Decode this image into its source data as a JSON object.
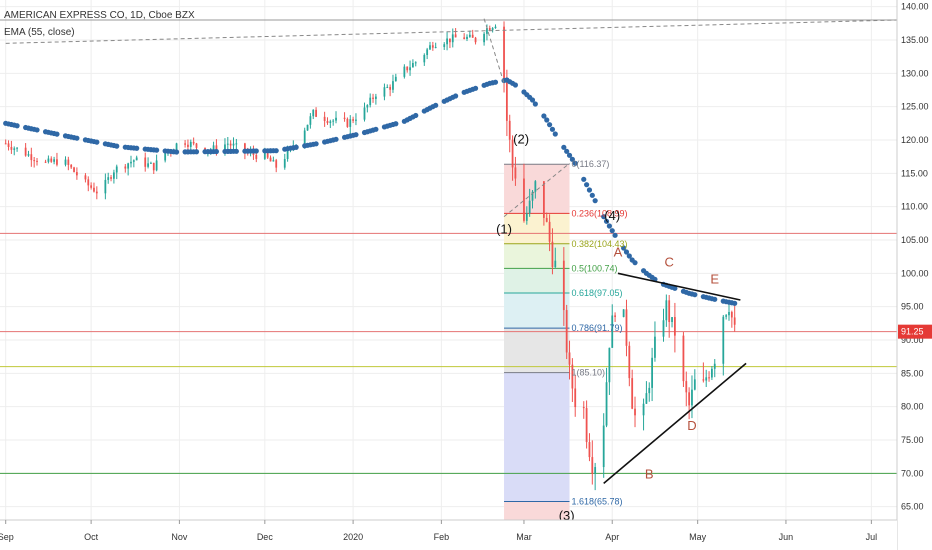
{
  "chart_data": {
    "type": "candlestick",
    "title": "AMERICAN EXPRESS CO, 1D, Cboe BZX",
    "indicator": "EMA (55, close)",
    "last_price": {
      "value": "91.25",
      "price": 91.25,
      "color": "#e53935"
    },
    "ylim": [
      63,
      141
    ],
    "y_ticks": [
      "140.00",
      "135.00",
      "130.00",
      "125.00",
      "120.00",
      "115.00",
      "110.00",
      "105.00",
      "100.00",
      "95.00",
      "90.00",
      "85.00",
      "80.00",
      "75.00",
      "70.00",
      "65.00"
    ],
    "x_ticks": [
      {
        "label": "Sep",
        "day": 0
      },
      {
        "label": "Oct",
        "day": 30
      },
      {
        "label": "Nov",
        "day": 61
      },
      {
        "label": "Dec",
        "day": 91
      },
      {
        "label": "2020",
        "day": 122
      },
      {
        "label": "Feb",
        "day": 153
      },
      {
        "label": "Mar",
        "day": 182
      },
      {
        "label": "Apr",
        "day": 213
      },
      {
        "label": "May",
        "day": 243
      },
      {
        "label": "Jun",
        "day": 274
      },
      {
        "label": "Jul",
        "day": 304
      }
    ],
    "xlim": [
      -2,
      313
    ],
    "colors": {
      "up": "#26a69a",
      "down": "#ef5350",
      "ema": "#2f68a6",
      "grid": "#eeeeee"
    },
    "price_path": [
      [
        0,
        119.5
      ],
      [
        7,
        118.0
      ],
      [
        14,
        116.5
      ],
      [
        20,
        117.0
      ],
      [
        28,
        113.5
      ],
      [
        33,
        112.0
      ],
      [
        38,
        115.5
      ],
      [
        45,
        117.0
      ],
      [
        52,
        116.0
      ],
      [
        56,
        118.0
      ],
      [
        62,
        120.0
      ],
      [
        67,
        119.0
      ],
      [
        72,
        118.5
      ],
      [
        78,
        119.5
      ],
      [
        85,
        118.0
      ],
      [
        91,
        117.5
      ],
      [
        95,
        116.0
      ],
      [
        100,
        118.5
      ],
      [
        104,
        121.0
      ],
      [
        108,
        124.0
      ],
      [
        114,
        123.0
      ],
      [
        120,
        122.5
      ],
      [
        126,
        124.5
      ],
      [
        130,
        127.0
      ],
      [
        135,
        128.0
      ],
      [
        140,
        130.5
      ],
      [
        145,
        132.0
      ],
      [
        150,
        134.5
      ],
      [
        155,
        135.0
      ],
      [
        160,
        135.5
      ],
      [
        165,
        135.0
      ],
      [
        168,
        136.5
      ],
      [
        172,
        137.5
      ],
      [
        174,
        136.0
      ],
      [
        176,
        123.0
      ],
      [
        178,
        116.0
      ],
      [
        180,
        114.0
      ],
      [
        182,
        108.0
      ],
      [
        184,
        110.0
      ],
      [
        186,
        113.0
      ],
      [
        188,
        111.0
      ],
      [
        190,
        107.0
      ],
      [
        192,
        102.5
      ],
      [
        194,
        100.0
      ],
      [
        196,
        93.0
      ],
      [
        198,
        85.0
      ],
      [
        200,
        81.0
      ],
      [
        202,
        83.0
      ],
      [
        204,
        76.0
      ],
      [
        206,
        71.5
      ],
      [
        208,
        72.0
      ],
      [
        210,
        78.0
      ],
      [
        212,
        90.0
      ],
      [
        214,
        95.0
      ],
      [
        216,
        96.0
      ],
      [
        218,
        90.0
      ],
      [
        220,
        81.0
      ],
      [
        222,
        76.0
      ],
      [
        224,
        79.0
      ],
      [
        226,
        84.0
      ],
      [
        228,
        89.0
      ],
      [
        230,
        93.0
      ],
      [
        232,
        95.0
      ],
      [
        234,
        92.0
      ],
      [
        236,
        90.5
      ],
      [
        238,
        83.0
      ],
      [
        240,
        80.0
      ],
      [
        242,
        83.5
      ],
      [
        244,
        81.5
      ],
      [
        246,
        84.5
      ],
      [
        248,
        86.5
      ],
      [
        250,
        88.5
      ],
      [
        252,
        94.0
      ],
      [
        254,
        95.5
      ],
      [
        256,
        91.2
      ]
    ],
    "ema_path": [
      [
        0,
        122.5
      ],
      [
        20,
        120.7
      ],
      [
        40,
        119.0
      ],
      [
        60,
        118.2
      ],
      [
        80,
        118.3
      ],
      [
        95,
        118.4
      ],
      [
        110,
        119.5
      ],
      [
        125,
        121.0
      ],
      [
        140,
        122.8
      ],
      [
        150,
        125.0
      ],
      [
        160,
        127.0
      ],
      [
        170,
        128.5
      ],
      [
        176,
        129.0
      ],
      [
        180,
        128.0
      ],
      [
        185,
        126.0
      ],
      [
        190,
        123.0
      ],
      [
        195,
        119.5
      ],
      [
        200,
        116.5
      ],
      [
        205,
        112.5
      ],
      [
        210,
        108.5
      ],
      [
        215,
        105.0
      ],
      [
        220,
        102.0
      ],
      [
        225,
        100.0
      ],
      [
        230,
        98.5
      ],
      [
        240,
        97.0
      ],
      [
        250,
        96.0
      ],
      [
        256,
        95.5
      ]
    ],
    "wave_labels": [
      {
        "text": "(1)",
        "day": 175,
        "price": 106.0,
        "color": "black"
      },
      {
        "text": "(2)",
        "day": 181,
        "price": 119.5,
        "color": "black"
      },
      {
        "text": "(3)",
        "day": 197,
        "price": 63.0,
        "color": "black"
      },
      {
        "text": "(4)",
        "day": 213,
        "price": 108.0,
        "color": "black"
      },
      {
        "text": "A",
        "day": 215,
        "price": 102.5,
        "color": "red"
      },
      {
        "text": "B",
        "day": 226,
        "price": 69.2,
        "color": "red"
      },
      {
        "text": "C",
        "day": 233,
        "price": 101.0,
        "color": "red"
      },
      {
        "text": "D",
        "day": 241,
        "price": 76.5,
        "color": "red"
      },
      {
        "text": "E",
        "day": 249,
        "price": 98.5,
        "color": "red"
      }
    ],
    "fib": {
      "day_start": 175,
      "day_end": 198,
      "levels": [
        {
          "label": "0(116.37)",
          "price": 116.37,
          "color": "#787b86",
          "fill": "#f9d9d9"
        },
        {
          "label": "0.236(108.99)",
          "price": 108.99,
          "color": "#e53935",
          "fill": "#fbf2d0"
        },
        {
          "label": "0.382(104.43)",
          "price": 104.43,
          "color": "#9aa51b",
          "fill": "#eaf5dc"
        },
        {
          "label": "0.5(100.74)",
          "price": 100.74,
          "color": "#43a047",
          "fill": "#dff2e6"
        },
        {
          "label": "0.618(97.05)",
          "price": 97.05,
          "color": "#26a69a",
          "fill": "#ddf0f3"
        },
        {
          "label": "0.786(91.79)",
          "price": 91.79,
          "color": "#2f68a6",
          "fill": "#e6e6e6"
        },
        {
          "label": "1(85.10)",
          "price": 85.1,
          "color": "#787b86",
          "fill": "#d9dcf7"
        },
        {
          "label": "1.618(65.78)",
          "price": 65.78,
          "color": "#2f68a6",
          "fill": "#f9d9d9"
        }
      ]
    },
    "horizontal_lines": [
      {
        "price": 138.0,
        "color": "#999999"
      },
      {
        "price": 106.0,
        "color": "#e57373"
      },
      {
        "price": 91.25,
        "color": "#e57373"
      },
      {
        "price": 86.0,
        "color": "#c0c83a"
      },
      {
        "price": 70.0,
        "color": "#43a047"
      }
    ],
    "trendlines": [
      {
        "from": [
          0,
          134.5
        ],
        "to": [
          313,
          138.0
        ],
        "color": "#888888",
        "dash": true
      },
      {
        "from": [
          215,
          100.0
        ],
        "to": [
          258,
          96.0
        ],
        "color": "#111111",
        "dash": false
      },
      {
        "from": [
          210,
          68.5
        ],
        "to": [
          260,
          86.5
        ],
        "color": "#111111",
        "dash": false
      },
      {
        "from": [
          168,
          138.2
        ],
        "to": [
          175,
          128.5
        ],
        "color": "#888888",
        "dash": true
      },
      {
        "from": [
          175,
          108.5
        ],
        "to": [
          198,
          116.5
        ],
        "color": "#888888",
        "dash": true
      }
    ]
  }
}
